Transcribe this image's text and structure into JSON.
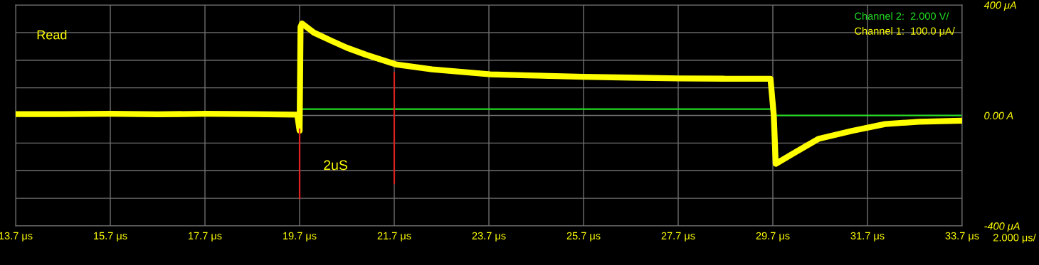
{
  "chart_data": {
    "type": "line",
    "series": [
      {
        "name": "Channel 2:  2.000 V/",
        "color": "#22dd22",
        "x": [
          19.7,
          29.7,
          29.7,
          33.7
        ],
        "values": [
          23,
          23,
          0,
          0
        ]
      },
      {
        "name": "Channel 1:  100.0 μA/",
        "color": "#ffff00",
        "x": [
          13.7,
          14.7,
          15.7,
          16.7,
          17.7,
          18.7,
          19.65,
          19.7,
          19.72,
          19.75,
          20.0,
          20.39,
          20.7,
          21.1,
          21.73,
          22.5,
          23.73,
          24.53,
          25.7,
          26.7,
          27.7,
          28.7,
          29.65,
          29.72,
          29.76,
          30.18,
          30.66,
          31.37,
          32.07,
          32.78,
          33.7
        ],
        "values": [
          5,
          5,
          6,
          4,
          6,
          5,
          3,
          -55,
          320,
          333,
          300,
          269,
          245,
          220,
          185,
          167,
          149,
          145,
          140,
          137,
          134,
          133,
          133,
          0,
          -175,
          -133,
          -85,
          -56,
          -31,
          -23,
          -19
        ]
      },
      {
        "color": "#dd2222",
        "x": [
          19.7,
          19.7
        ],
        "values": [
          -50,
          -300
        ]
      },
      {
        "color": "#dd2222",
        "x": [
          21.7,
          21.7
        ],
        "values": [
          154,
          -246
        ]
      }
    ],
    "xlim": [
      13.7,
      33.7
    ],
    "xticks": [
      {
        "value": 13.7,
        "label": "13.7 μs"
      },
      {
        "value": 15.7,
        "label": "15.7 μs"
      },
      {
        "value": 17.7,
        "label": "17.7 μs"
      },
      {
        "value": 19.7,
        "label": "19.7 μs"
      },
      {
        "value": 21.7,
        "label": "21.7 μs"
      },
      {
        "value": 23.7,
        "label": "23.7 μs"
      },
      {
        "value": 25.7,
        "label": "25.7 μs"
      },
      {
        "value": 27.7,
        "label": "27.7 μs"
      },
      {
        "value": 29.7,
        "label": "29.7 μs"
      },
      {
        "value": 31.7,
        "label": "31.7 μs"
      },
      {
        "value": 33.7,
        "label": "33.7 μs"
      }
    ],
    "ylim": [
      -400,
      400
    ],
    "yticks": [
      {
        "value": -400,
        "label": "-400 μA"
      },
      {
        "value": -300,
        "label": null
      },
      {
        "value": -200,
        "label": null
      },
      {
        "value": -100,
        "label": null
      },
      {
        "value": 0,
        "label": "0.00 A"
      },
      {
        "value": 100,
        "label": null
      },
      {
        "value": 200,
        "label": null
      },
      {
        "value": 300,
        "label": null
      },
      {
        "value": 400,
        "label": "400 μA"
      }
    ],
    "annotations": [
      "Read",
      "2uS",
      "2.000 μs/"
    ],
    "grid": true,
    "legend": "top right",
    "marker": "none",
    "line_style": "solid"
  }
}
